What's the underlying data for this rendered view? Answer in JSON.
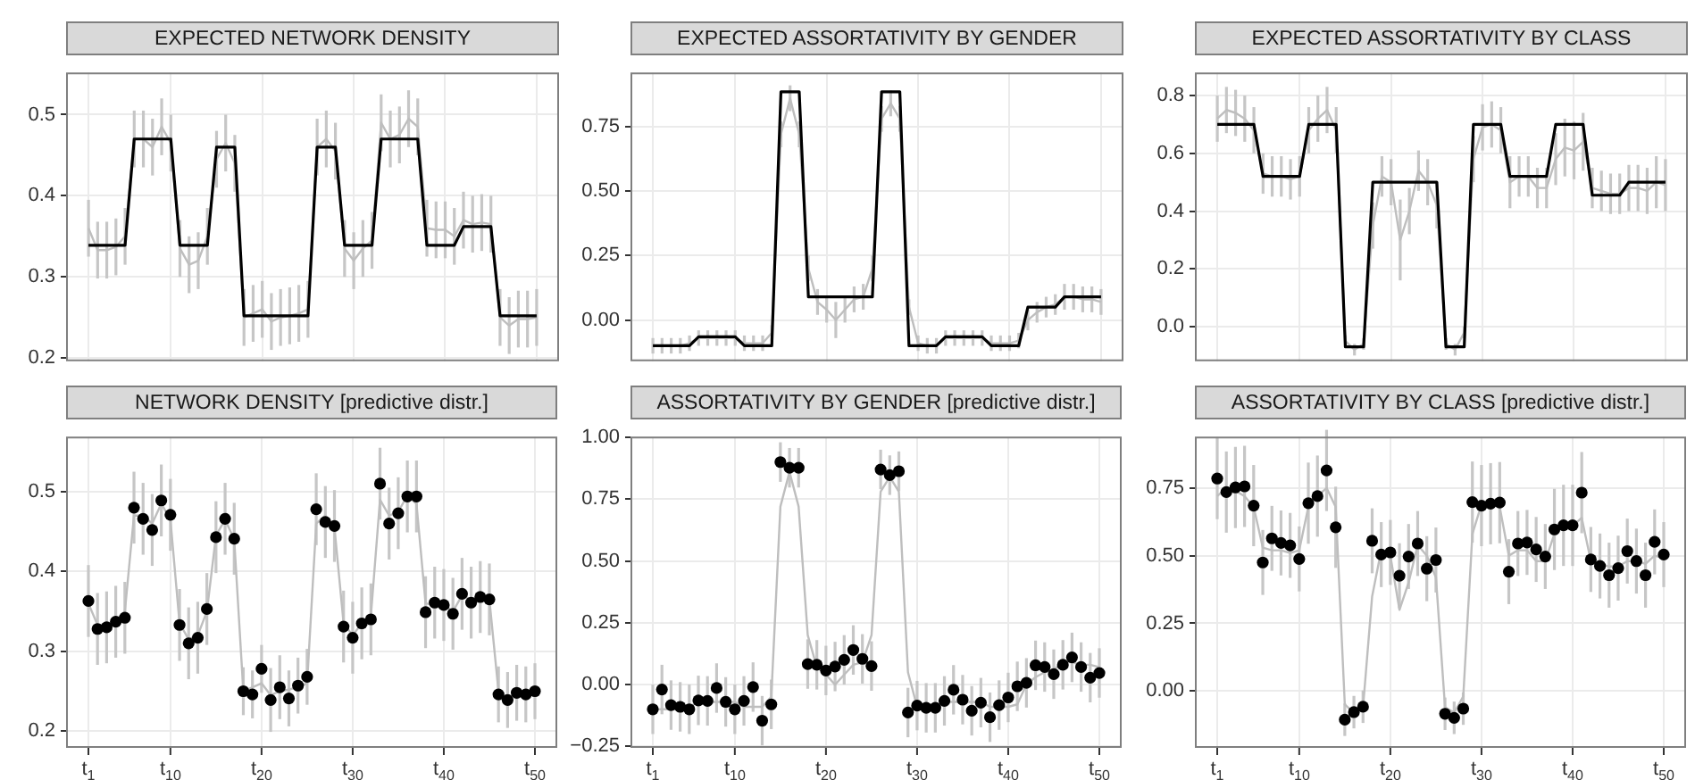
{
  "chart_data": [
    {
      "type": "line",
      "title": "EXPECTED NETWORK  DENSITY",
      "x": [
        1,
        2,
        3,
        4,
        5,
        6,
        7,
        8,
        9,
        10,
        11,
        12,
        13,
        14,
        15,
        16,
        17,
        18,
        19,
        20,
        21,
        22,
        23,
        24,
        25,
        26,
        27,
        28,
        29,
        30,
        31,
        32,
        33,
        34,
        35,
        36,
        37,
        38,
        39,
        40,
        41,
        42,
        43,
        44,
        45,
        46,
        47,
        48,
        49,
        50
      ],
      "xlim": [
        -1.45,
        52.45
      ],
      "xticks": [
        1,
        10,
        20,
        30,
        40,
        50
      ],
      "ylim": [
        0.196,
        0.552
      ],
      "yticks": [
        0.2,
        0.3,
        0.4,
        0.5
      ],
      "grid": true,
      "legend": false,
      "tick_labels": "y",
      "series": [
        {
          "color": "#bebebe",
          "values": [
            0.36,
            0.333,
            0.333,
            0.337,
            0.35,
            0.47,
            0.47,
            0.46,
            0.485,
            0.465,
            0.335,
            0.315,
            0.32,
            0.35,
            0.445,
            0.465,
            0.44,
            0.25,
            0.255,
            0.26,
            0.245,
            0.25,
            0.252,
            0.255,
            0.26,
            0.46,
            0.47,
            0.455,
            0.335,
            0.32,
            0.335,
            0.345,
            0.49,
            0.47,
            0.475,
            0.495,
            0.485,
            0.36,
            0.358,
            0.358,
            0.35,
            0.37,
            0.365,
            0.367,
            0.365,
            0.25,
            0.24,
            0.248,
            0.248,
            0.25
          ],
          "errors": [
            0.035,
            0.035,
            0.035,
            0.035,
            0.035,
            0.035,
            0.035,
            0.035,
            0.035,
            0.035,
            0.035,
            0.035,
            0.035,
            0.035,
            0.035,
            0.035,
            0.035,
            0.035,
            0.035,
            0.035,
            0.035,
            0.035,
            0.035,
            0.035,
            0.035,
            0.035,
            0.035,
            0.035,
            0.035,
            0.035,
            0.035,
            0.035,
            0.035,
            0.035,
            0.035,
            0.035,
            0.035,
            0.035,
            0.035,
            0.035,
            0.035,
            0.035,
            0.035,
            0.035,
            0.035,
            0.035,
            0.035,
            0.035,
            0.035,
            0.035
          ]
        },
        {
          "color": "#000000",
          "values": [
            0.339,
            0.339,
            0.339,
            0.339,
            0.339,
            0.47,
            0.47,
            0.47,
            0.47,
            0.47,
            0.339,
            0.339,
            0.339,
            0.339,
            0.46,
            0.46,
            0.46,
            0.252,
            0.252,
            0.252,
            0.252,
            0.252,
            0.252,
            0.252,
            0.252,
            0.46,
            0.46,
            0.46,
            0.339,
            0.339,
            0.339,
            0.339,
            0.47,
            0.47,
            0.47,
            0.47,
            0.47,
            0.339,
            0.339,
            0.339,
            0.339,
            0.362,
            0.362,
            0.362,
            0.362,
            0.252,
            0.252,
            0.252,
            0.252,
            0.252
          ]
        }
      ]
    },
    {
      "type": "line",
      "title": "EXPECTED ASSORTATIVITY  BY  GENDER",
      "x": [
        1,
        2,
        3,
        4,
        5,
        6,
        7,
        8,
        9,
        10,
        11,
        12,
        13,
        14,
        15,
        16,
        17,
        18,
        19,
        20,
        21,
        22,
        23,
        24,
        25,
        26,
        27,
        28,
        29,
        30,
        31,
        32,
        33,
        34,
        35,
        36,
        37,
        38,
        39,
        40,
        41,
        42,
        43,
        44,
        45,
        46,
        47,
        48,
        49,
        50
      ],
      "xlim": [
        -1.45,
        52.45
      ],
      "xticks": [
        1,
        10,
        20,
        30,
        40,
        50
      ],
      "ylim": [
        -0.16,
        0.96
      ],
      "yticks": [
        {
          "value": 0,
          "label": "0.00"
        },
        {
          "value": 0.25,
          "label": "0.25"
        },
        {
          "value": 0.5,
          "label": "0.50"
        },
        {
          "value": 0.75,
          "label": "0.75"
        }
      ],
      "grid": true,
      "legend": false,
      "tick_labels": "y",
      "series": [
        {
          "color": "#bebebe",
          "values": [
            -0.1,
            -0.1,
            -0.1,
            -0.1,
            -0.09,
            -0.07,
            -0.07,
            -0.07,
            -0.07,
            -0.07,
            -0.09,
            -0.09,
            -0.09,
            -0.05,
            0.72,
            0.86,
            0.72,
            0.2,
            0.07,
            0.04,
            0.0,
            0.04,
            0.08,
            0.09,
            0.2,
            0.78,
            0.84,
            0.78,
            0.05,
            -0.09,
            -0.1,
            -0.1,
            -0.07,
            -0.07,
            -0.07,
            -0.07,
            -0.07,
            -0.09,
            -0.09,
            -0.09,
            -0.08,
            0.0,
            0.03,
            0.05,
            0.06,
            0.09,
            0.09,
            0.08,
            0.08,
            0.07
          ],
          "errors": [
            0.03,
            0.03,
            0.03,
            0.03,
            0.03,
            0.03,
            0.03,
            0.03,
            0.03,
            0.03,
            0.03,
            0.03,
            0.03,
            0.03,
            0.05,
            0.05,
            0.05,
            0.05,
            0.05,
            0.05,
            0.07,
            0.05,
            0.05,
            0.05,
            0.05,
            0.05,
            0.05,
            0.05,
            0.03,
            0.03,
            0.03,
            0.03,
            0.03,
            0.03,
            0.03,
            0.03,
            0.03,
            0.03,
            0.03,
            0.03,
            0.03,
            0.04,
            0.04,
            0.04,
            0.04,
            0.05,
            0.05,
            0.05,
            0.05,
            0.05
          ]
        },
        {
          "color": "#000000",
          "values": [
            -0.1,
            -0.1,
            -0.1,
            -0.1,
            -0.1,
            -0.065,
            -0.065,
            -0.065,
            -0.065,
            -0.065,
            -0.1,
            -0.1,
            -0.1,
            -0.1,
            0.885,
            0.885,
            0.885,
            0.09,
            0.09,
            0.09,
            0.09,
            0.09,
            0.09,
            0.09,
            0.09,
            0.885,
            0.885,
            0.885,
            -0.1,
            -0.1,
            -0.1,
            -0.1,
            -0.065,
            -0.065,
            -0.065,
            -0.065,
            -0.065,
            -0.1,
            -0.1,
            -0.1,
            -0.1,
            0.05,
            0.05,
            0.05,
            0.05,
            0.09,
            0.09,
            0.09,
            0.09,
            0.09
          ]
        }
      ]
    },
    {
      "type": "line",
      "title": "EXPECTED ASSORTATIVITY  BY  CLASS",
      "x": [
        1,
        2,
        3,
        4,
        5,
        6,
        7,
        8,
        9,
        10,
        11,
        12,
        13,
        14,
        15,
        16,
        17,
        18,
        19,
        20,
        21,
        22,
        23,
        24,
        25,
        26,
        27,
        28,
        29,
        30,
        31,
        32,
        33,
        34,
        35,
        36,
        37,
        38,
        39,
        40,
        41,
        42,
        43,
        44,
        45,
        46,
        47,
        48,
        49,
        50
      ],
      "xlim": [
        -1.45,
        52.45
      ],
      "xticks": [
        1,
        10,
        20,
        30,
        40,
        50
      ],
      "ylim": [
        -0.12,
        0.88
      ],
      "yticks": [
        {
          "value": 0,
          "label": "0.0"
        },
        0.2,
        0.4,
        0.6,
        0.8
      ],
      "grid": true,
      "legend": false,
      "tick_labels": "y",
      "series": [
        {
          "color": "#bebebe",
          "values": [
            0.72,
            0.75,
            0.74,
            0.72,
            0.68,
            0.53,
            0.52,
            0.52,
            0.51,
            0.52,
            0.68,
            0.72,
            0.75,
            0.68,
            -0.05,
            -0.08,
            -0.06,
            0.35,
            0.52,
            0.5,
            0.3,
            0.4,
            0.54,
            0.5,
            0.42,
            -0.06,
            -0.08,
            -0.02,
            0.58,
            0.69,
            0.7,
            0.68,
            0.5,
            0.52,
            0.52,
            0.48,
            0.48,
            0.58,
            0.62,
            0.61,
            0.64,
            0.48,
            0.47,
            0.46,
            0.46,
            0.48,
            0.48,
            0.47,
            0.5,
            0.49
          ],
          "errors": [
            0.08,
            0.08,
            0.08,
            0.08,
            0.08,
            0.07,
            0.07,
            0.07,
            0.07,
            0.07,
            0.08,
            0.08,
            0.08,
            0.08,
            0.02,
            0.02,
            0.02,
            0.08,
            0.07,
            0.08,
            0.14,
            0.08,
            0.07,
            0.08,
            0.08,
            0.02,
            0.02,
            0.02,
            0.08,
            0.08,
            0.08,
            0.08,
            0.09,
            0.07,
            0.07,
            0.07,
            0.07,
            0.09,
            0.1,
            0.1,
            0.1,
            0.07,
            0.07,
            0.07,
            0.07,
            0.08,
            0.08,
            0.08,
            0.09,
            0.09
          ]
        },
        {
          "color": "#000000",
          "values": [
            0.7,
            0.7,
            0.7,
            0.7,
            0.7,
            0.52,
            0.52,
            0.52,
            0.52,
            0.52,
            0.7,
            0.7,
            0.7,
            0.7,
            -0.07,
            -0.07,
            -0.07,
            0.5,
            0.5,
            0.5,
            0.5,
            0.5,
            0.5,
            0.5,
            0.5,
            -0.07,
            -0.07,
            -0.07,
            0.7,
            0.7,
            0.7,
            0.7,
            0.52,
            0.52,
            0.52,
            0.52,
            0.52,
            0.7,
            0.7,
            0.7,
            0.7,
            0.455,
            0.455,
            0.455,
            0.455,
            0.5,
            0.5,
            0.5,
            0.5,
            0.5
          ]
        }
      ]
    },
    {
      "type": "line",
      "title": "NETWORK  DENSITY [predictive distr.]",
      "x": [
        1,
        2,
        3,
        4,
        5,
        6,
        7,
        8,
        9,
        10,
        11,
        12,
        13,
        14,
        15,
        16,
        17,
        18,
        19,
        20,
        21,
        22,
        23,
        24,
        25,
        26,
        27,
        28,
        29,
        30,
        31,
        32,
        33,
        34,
        35,
        36,
        37,
        38,
        39,
        40,
        41,
        42,
        43,
        44,
        45,
        46,
        47,
        48,
        49,
        50
      ],
      "xlim": [
        -1.45,
        52.45
      ],
      "xticks": [
        {
          "value": 1,
          "label": "t$_{1}$"
        },
        {
          "value": 10,
          "label": "t$_{10}$"
        },
        {
          "value": 20,
          "label": "t$_{20}$"
        },
        {
          "value": 30,
          "label": "t$_{30}$"
        },
        {
          "value": 40,
          "label": "t$_{40}$"
        },
        {
          "value": 50,
          "label": "t$_{50}$"
        }
      ],
      "ylim": [
        0.179,
        0.569
      ],
      "yticks": [
        0.2,
        0.3,
        0.4,
        0.5
      ],
      "grid": true,
      "legend": false,
      "series": [
        {
          "marker": "none",
          "color": "#bebebe",
          "values": [
            0.36,
            0.333,
            0.333,
            0.337,
            0.35,
            0.47,
            0.47,
            0.46,
            0.485,
            0.465,
            0.335,
            0.315,
            0.32,
            0.35,
            0.445,
            0.465,
            0.44,
            0.25,
            0.255,
            0.26,
            0.245,
            0.25,
            0.252,
            0.255,
            0.26,
            0.46,
            0.47,
            0.455,
            0.335,
            0.32,
            0.335,
            0.345,
            0.49,
            0.47,
            0.475,
            0.495,
            0.485,
            0.36,
            0.358,
            0.358,
            0.35,
            0.37,
            0.365,
            0.367,
            0.365,
            0.25,
            0.24,
            0.248,
            0.248,
            0.25
          ]
        },
        {
          "type": "scatter",
          "marker": "circle",
          "color": "#000000",
          "values": [
            0.363,
            0.328,
            0.33,
            0.337,
            0.342,
            0.48,
            0.466,
            0.452,
            0.489,
            0.471,
            0.333,
            0.31,
            0.317,
            0.353,
            0.443,
            0.466,
            0.441,
            0.25,
            0.246,
            0.278,
            0.239,
            0.255,
            0.241,
            0.257,
            0.268,
            0.478,
            0.462,
            0.457,
            0.331,
            0.317,
            0.335,
            0.34,
            0.51,
            0.46,
            0.473,
            0.494,
            0.494,
            0.349,
            0.361,
            0.358,
            0.347,
            0.372,
            0.361,
            0.368,
            0.365,
            0.246,
            0.239,
            0.248,
            0.246,
            0.25
          ],
          "errors": [
            0.045,
            0.045,
            0.045,
            0.045,
            0.045,
            0.045,
            0.045,
            0.045,
            0.045,
            0.045,
            0.045,
            0.045,
            0.045,
            0.045,
            0.045,
            0.045,
            0.045,
            0.03,
            0.03,
            0.03,
            0.04,
            0.04,
            0.035,
            0.035,
            0.035,
            0.045,
            0.045,
            0.045,
            0.045,
            0.045,
            0.045,
            0.045,
            0.045,
            0.045,
            0.045,
            0.045,
            0.045,
            0.045,
            0.045,
            0.045,
            0.045,
            0.045,
            0.045,
            0.045,
            0.045,
            0.035,
            0.035,
            0.035,
            0.035,
            0.035
          ]
        }
      ]
    },
    {
      "type": "line",
      "title": "ASSORTATIVITY  BY  GENDER [predictive distr.]",
      "x": [
        1,
        2,
        3,
        4,
        5,
        6,
        7,
        8,
        9,
        10,
        11,
        12,
        13,
        14,
        15,
        16,
        17,
        18,
        19,
        20,
        21,
        22,
        23,
        24,
        25,
        26,
        27,
        28,
        29,
        30,
        31,
        32,
        33,
        34,
        35,
        36,
        37,
        38,
        39,
        40,
        41,
        42,
        43,
        44,
        45,
        46,
        47,
        48,
        49,
        50
      ],
      "xlim": [
        -1.45,
        52.45
      ],
      "xticks": [
        {
          "value": 1,
          "label": "t$_{1}$"
        },
        {
          "value": 10,
          "label": "t$_{10}$"
        },
        {
          "value": 20,
          "label": "t$_{20}$"
        },
        {
          "value": 30,
          "label": "t$_{30}$"
        },
        {
          "value": 40,
          "label": "t$_{40}$"
        },
        {
          "value": 50,
          "label": "t$_{50}$"
        }
      ],
      "ylim": [
        -0.256,
        1.003
      ],
      "yticks": [
        {
          "value": -0.25,
          "label": "−0.25"
        },
        {
          "value": 0,
          "label": "0.00"
        },
        {
          "value": 0.25,
          "label": "0.25"
        },
        {
          "value": 0.5,
          "label": "0.50"
        },
        {
          "value": 0.75,
          "label": "0.75"
        },
        {
          "value": 1,
          "label": "1.00"
        }
      ],
      "grid": true,
      "legend": false,
      "series": [
        {
          "marker": "none",
          "color": "#bebebe",
          "values": [
            -0.1,
            -0.1,
            -0.1,
            -0.1,
            -0.09,
            -0.07,
            -0.07,
            -0.07,
            -0.07,
            -0.07,
            -0.09,
            -0.09,
            -0.09,
            -0.05,
            0.72,
            0.86,
            0.72,
            0.2,
            0.07,
            0.04,
            0.0,
            0.04,
            0.08,
            0.09,
            0.2,
            0.78,
            0.84,
            0.78,
            0.05,
            -0.09,
            -0.1,
            -0.1,
            -0.07,
            -0.07,
            -0.07,
            -0.07,
            -0.07,
            -0.09,
            -0.09,
            -0.09,
            -0.08,
            0.0,
            0.03,
            0.05,
            0.06,
            0.09,
            0.09,
            0.08,
            0.08,
            0.07
          ]
        },
        {
          "type": "scatter",
          "marker": "circle",
          "color": "#000000",
          "values": [
            -0.1,
            -0.02,
            -0.083,
            -0.09,
            -0.1,
            -0.064,
            -0.066,
            -0.014,
            -0.07,
            -0.1,
            -0.066,
            -0.01,
            -0.146,
            -0.08,
            0.9,
            0.877,
            0.877,
            0.083,
            0.08,
            0.057,
            0.073,
            0.1,
            0.14,
            0.104,
            0.075,
            0.87,
            0.847,
            0.863,
            -0.113,
            -0.085,
            -0.094,
            -0.094,
            -0.066,
            -0.021,
            -0.061,
            -0.106,
            -0.073,
            -0.132,
            -0.083,
            -0.052,
            -0.007,
            0.007,
            0.078,
            0.071,
            0.042,
            0.08,
            0.11,
            0.071,
            0.028,
            0.047
          ],
          "errors": [
            0.1,
            0.1,
            0.1,
            0.1,
            0.1,
            0.1,
            0.1,
            0.1,
            0.1,
            0.1,
            0.1,
            0.1,
            0.1,
            0.1,
            0.08,
            0.08,
            0.08,
            0.1,
            0.1,
            0.1,
            0.1,
            0.1,
            0.1,
            0.1,
            0.1,
            0.08,
            0.08,
            0.08,
            0.1,
            0.1,
            0.1,
            0.1,
            0.1,
            0.1,
            0.1,
            0.1,
            0.1,
            0.1,
            0.1,
            0.1,
            0.1,
            0.1,
            0.1,
            0.1,
            0.1,
            0.1,
            0.1,
            0.1,
            0.1,
            0.1
          ]
        }
      ]
    },
    {
      "type": "line",
      "title": "ASSORTATIVITY  BY  CLASS [predictive distr.]",
      "x": [
        1,
        2,
        3,
        4,
        5,
        6,
        7,
        8,
        9,
        10,
        11,
        12,
        13,
        14,
        15,
        16,
        17,
        18,
        19,
        20,
        21,
        22,
        23,
        24,
        25,
        26,
        27,
        28,
        29,
        30,
        31,
        32,
        33,
        34,
        35,
        36,
        37,
        38,
        39,
        40,
        41,
        42,
        43,
        44,
        45,
        46,
        47,
        48,
        49,
        50
      ],
      "xlim": [
        -1.45,
        52.45
      ],
      "xticks": [
        {
          "value": 1,
          "label": "t$_{1}$"
        },
        {
          "value": 10,
          "label": "t$_{10}$"
        },
        {
          "value": 20,
          "label": "t$_{20}$"
        },
        {
          "value": 30,
          "label": "t$_{30}$"
        },
        {
          "value": 40,
          "label": "t$_{40}$"
        },
        {
          "value": 50,
          "label": "t$_{50}$"
        }
      ],
      "ylim": [
        -0.21,
        0.94
      ],
      "yticks": [
        {
          "value": 0,
          "label": "0.00"
        },
        {
          "value": 0.25,
          "label": "0.25"
        },
        {
          "value": 0.5,
          "label": "0.50"
        },
        {
          "value": 0.75,
          "label": "0.75"
        }
      ],
      "grid": true,
      "legend": false,
      "series": [
        {
          "marker": "none",
          "color": "#bebebe",
          "values": [
            0.72,
            0.75,
            0.74,
            0.72,
            0.68,
            0.53,
            0.52,
            0.52,
            0.51,
            0.52,
            0.68,
            0.72,
            0.75,
            0.68,
            -0.05,
            -0.08,
            -0.06,
            0.35,
            0.52,
            0.5,
            0.3,
            0.4,
            0.54,
            0.5,
            0.42,
            -0.06,
            -0.08,
            -0.02,
            0.58,
            0.69,
            0.7,
            0.68,
            0.5,
            0.52,
            0.52,
            0.48,
            0.48,
            0.58,
            0.62,
            0.61,
            0.64,
            0.48,
            0.47,
            0.46,
            0.46,
            0.48,
            0.48,
            0.47,
            0.5,
            0.49
          ]
        },
        {
          "type": "scatter",
          "marker": "circle",
          "color": "#000000",
          "values": [
            0.785,
            0.735,
            0.752,
            0.756,
            0.685,
            0.475,
            0.564,
            0.547,
            0.538,
            0.488,
            0.694,
            0.72,
            0.815,
            0.605,
            -0.106,
            -0.078,
            -0.058,
            0.555,
            0.504,
            0.512,
            0.426,
            0.497,
            0.545,
            0.452,
            0.484,
            -0.084,
            -0.099,
            -0.065,
            0.698,
            0.685,
            0.692,
            0.696,
            0.441,
            0.545,
            0.549,
            0.523,
            0.497,
            0.597,
            0.612,
            0.612,
            0.733,
            0.486,
            0.462,
            0.428,
            0.454,
            0.517,
            0.48,
            0.428,
            0.551,
            0.504
          ],
          "errors": [
            0.15,
            0.15,
            0.15,
            0.15,
            0.15,
            0.12,
            0.12,
            0.12,
            0.12,
            0.12,
            0.15,
            0.15,
            0.15,
            0.15,
            0.06,
            0.06,
            0.06,
            0.12,
            0.12,
            0.12,
            0.12,
            0.12,
            0.12,
            0.12,
            0.12,
            0.06,
            0.06,
            0.06,
            0.15,
            0.15,
            0.15,
            0.15,
            0.12,
            0.12,
            0.12,
            0.12,
            0.12,
            0.15,
            0.15,
            0.15,
            0.15,
            0.12,
            0.12,
            0.12,
            0.12,
            0.12,
            0.12,
            0.12,
            0.12,
            0.12
          ]
        }
      ]
    }
  ]
}
